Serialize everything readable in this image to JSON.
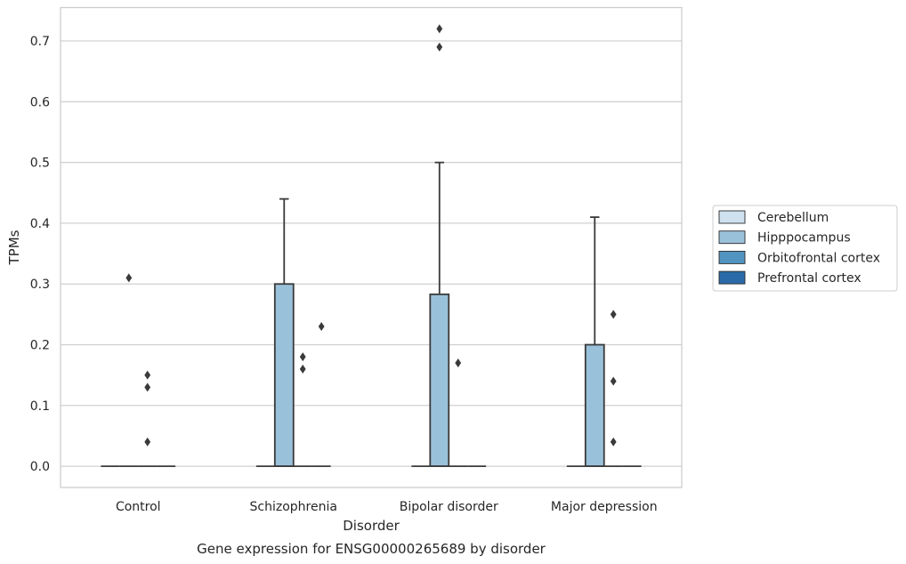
{
  "caption": "Gene expression for ENSG00000265689 by disorder",
  "chart_data": {
    "type": "box",
    "xlabel": "Disorder",
    "ylabel": "TPMs",
    "categories": [
      "Control",
      "Schizophrenia",
      "Bipolar disorder",
      "Major depression"
    ],
    "ylim": [
      -0.035,
      0.755
    ],
    "yticks": [
      0.0,
      0.1,
      0.2,
      0.3,
      0.4,
      0.5,
      0.6,
      0.7
    ],
    "ytick_labels": [
      "0.0",
      "0.1",
      "0.2",
      "0.3",
      "0.4",
      "0.5",
      "0.6",
      "0.7"
    ],
    "grid": "horizontal",
    "legend_position": "right",
    "series": [
      {
        "name": "Cerebellum",
        "color": "#cfe0ef",
        "boxes": [
          {
            "category": "Control",
            "q1": 0.0,
            "median": 0.0,
            "q3": 0.0,
            "whisker_low": 0.0,
            "whisker_high": 0.0,
            "outliers": []
          },
          {
            "category": "Schizophrenia",
            "q1": 0.0,
            "median": 0.0,
            "q3": 0.0,
            "whisker_low": 0.0,
            "whisker_high": 0.0,
            "outliers": []
          },
          {
            "category": "Bipolar disorder",
            "q1": 0.0,
            "median": 0.0,
            "q3": 0.0,
            "whisker_low": 0.0,
            "whisker_high": 0.0,
            "outliers": []
          },
          {
            "category": "Major depression",
            "q1": 0.0,
            "median": 0.0,
            "q3": 0.0,
            "whisker_low": 0.0,
            "whisker_high": 0.0,
            "outliers": []
          }
        ]
      },
      {
        "name": "Hipppocampus",
        "color": "#9ac1da",
        "boxes": [
          {
            "category": "Control",
            "q1": 0.0,
            "median": 0.0,
            "q3": 0.0,
            "whisker_low": 0.0,
            "whisker_high": 0.0,
            "outliers": [
              0.31
            ]
          },
          {
            "category": "Schizophrenia",
            "q1": 0.0,
            "median": 0.0,
            "q3": 0.3,
            "whisker_low": 0.0,
            "whisker_high": 0.44,
            "outliers": []
          },
          {
            "category": "Bipolar disorder",
            "q1": 0.0,
            "median": 0.0,
            "q3": 0.283,
            "whisker_low": 0.0,
            "whisker_high": 0.5,
            "outliers": [
              0.69,
              0.72
            ]
          },
          {
            "category": "Major depression",
            "q1": 0.0,
            "median": 0.0,
            "q3": 0.2,
            "whisker_low": 0.0,
            "whisker_high": 0.41,
            "outliers": []
          }
        ]
      },
      {
        "name": "Orbitofrontal cortex",
        "color": "#5294c1",
        "boxes": [
          {
            "category": "Control",
            "q1": 0.0,
            "median": 0.0,
            "q3": 0.0,
            "whisker_low": 0.0,
            "whisker_high": 0.0,
            "outliers": [
              0.04,
              0.13,
              0.15
            ]
          },
          {
            "category": "Schizophrenia",
            "q1": 0.0,
            "median": 0.0,
            "q3": 0.0,
            "whisker_low": 0.0,
            "whisker_high": 0.0,
            "outliers": [
              0.16,
              0.18
            ]
          },
          {
            "category": "Bipolar disorder",
            "q1": 0.0,
            "median": 0.0,
            "q3": 0.0,
            "whisker_low": 0.0,
            "whisker_high": 0.0,
            "outliers": [
              0.17
            ]
          },
          {
            "category": "Major depression",
            "q1": 0.0,
            "median": 0.0,
            "q3": 0.0,
            "whisker_low": 0.0,
            "whisker_high": 0.0,
            "outliers": [
              0.04,
              0.14,
              0.25
            ]
          }
        ]
      },
      {
        "name": "Prefrontal cortex",
        "color": "#2a6aa8",
        "boxes": [
          {
            "category": "Control",
            "q1": 0.0,
            "median": 0.0,
            "q3": 0.0,
            "whisker_low": 0.0,
            "whisker_high": 0.0,
            "outliers": []
          },
          {
            "category": "Schizophrenia",
            "q1": 0.0,
            "median": 0.0,
            "q3": 0.0,
            "whisker_low": 0.0,
            "whisker_high": 0.0,
            "outliers": [
              0.23
            ]
          },
          {
            "category": "Bipolar disorder",
            "q1": 0.0,
            "median": 0.0,
            "q3": 0.0,
            "whisker_low": 0.0,
            "whisker_high": 0.0,
            "outliers": []
          },
          {
            "category": "Major depression",
            "q1": 0.0,
            "median": 0.0,
            "q3": 0.0,
            "whisker_low": 0.0,
            "whisker_high": 0.0,
            "outliers": []
          }
        ]
      }
    ]
  }
}
